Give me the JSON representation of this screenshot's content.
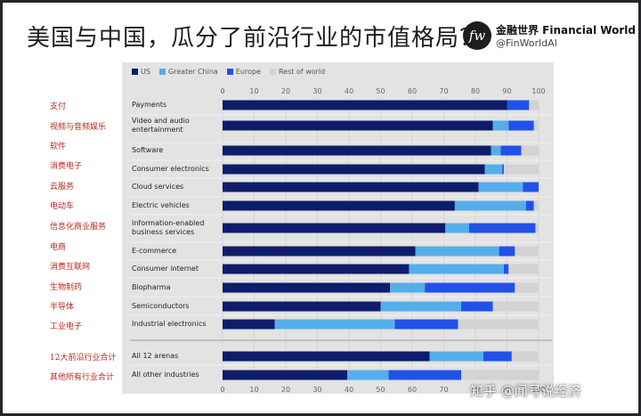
{
  "title": "美国与中国，瓜分了前沿行业的市值格局？",
  "brand": {
    "logo": "fw",
    "name": "金融世界 Financial World",
    "handle": "@FinWorldAI"
  },
  "watermark": "知乎 @闻号说经济",
  "colors": {
    "US": "#0e1d6b",
    "Greater China": "#55aeea",
    "Europe": "#2251ea",
    "Rest of world": "#d3d3d3"
  },
  "chart_data": {
    "type": "bar",
    "orientation": "horizontal",
    "stacked": true,
    "xlim": [
      0,
      100
    ],
    "xticks": [
      0,
      10,
      20,
      30,
      40,
      50,
      60,
      70,
      80,
      90,
      100
    ],
    "legend": [
      "US",
      "Greater China",
      "Europe",
      "Rest of world"
    ],
    "legend_position": "top-left",
    "categories": [
      {
        "label": "Payments",
        "label_cn": "支付",
        "values": [
          90,
          0,
          7,
          3
        ]
      },
      {
        "label": "Video and audio entertainment",
        "label_cn": "视频与音频娱乐",
        "values": [
          85.5,
          5,
          8,
          1.5
        ]
      },
      {
        "label": "Software",
        "label_cn": "软件",
        "values": [
          85,
          3,
          6.5,
          5.5
        ]
      },
      {
        "label": "Consumer electronics",
        "label_cn": "消费电子",
        "values": [
          83,
          5.5,
          0.5,
          11
        ]
      },
      {
        "label": "Cloud services",
        "label_cn": "云服务",
        "values": [
          81,
          14,
          5,
          0
        ]
      },
      {
        "label": "Electric vehicles",
        "label_cn": "电动车",
        "values": [
          73.5,
          22.5,
          2.5,
          1.5
        ]
      },
      {
        "label": "Information-enabled business services",
        "label_cn": "信息化商业服务",
        "values": [
          70.5,
          7.5,
          21,
          1
        ]
      },
      {
        "label": "E-commerce",
        "label_cn": "电商",
        "values": [
          61,
          26.5,
          5,
          7.5
        ]
      },
      {
        "label": "Consumer internet",
        "label_cn": "消费互联网",
        "values": [
          59,
          30,
          1.5,
          9.5
        ]
      },
      {
        "label": "Biopharma",
        "label_cn": "生物制药",
        "values": [
          53,
          11,
          28.5,
          7.5
        ]
      },
      {
        "label": "Semiconductors",
        "label_cn": "半导体",
        "values": [
          50,
          25.5,
          10,
          14.5
        ]
      },
      {
        "label": "Industrial electronics",
        "label_cn": "工业电子",
        "values": [
          16.5,
          38,
          20,
          25.5
        ]
      },
      {
        "label": "All 12 arenas",
        "label_cn": "12大前沿行业合计",
        "values": [
          65.5,
          17,
          9,
          8.5
        ]
      },
      {
        "label": "All other industries",
        "label_cn": "其他所有行业合计",
        "values": [
          39.5,
          13,
          23,
          24.5
        ]
      }
    ]
  }
}
